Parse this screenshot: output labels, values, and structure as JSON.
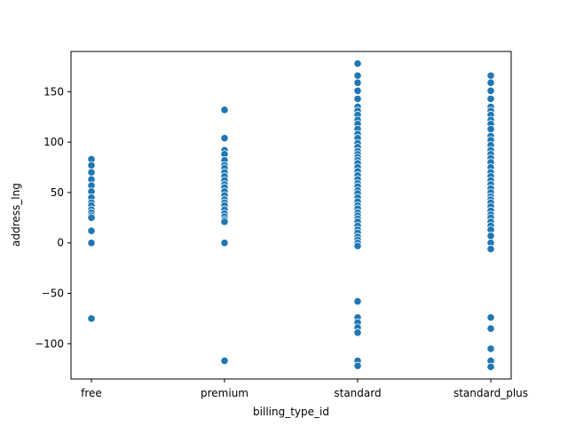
{
  "chart_data": {
    "type": "scatter",
    "xlabel": "billing_type_id",
    "ylabel": "address_lng",
    "categories": [
      "free",
      "premium",
      "standard",
      "standard_plus"
    ],
    "ylim": [
      -135,
      190
    ],
    "yticks": [
      -100,
      -50,
      0,
      50,
      100,
      150
    ],
    "grid": false,
    "point_color": "#1f77b4",
    "series": [
      {
        "category": "free",
        "y": [
          83,
          77,
          70,
          63,
          57,
          51,
          45,
          40,
          37,
          33,
          30,
          27,
          25,
          12,
          0,
          -75
        ]
      },
      {
        "category": "premium",
        "y": [
          132,
          104,
          92,
          88,
          82,
          77,
          74,
          70,
          66,
          62,
          58,
          55,
          51,
          47,
          43,
          40,
          37,
          33,
          29,
          26,
          23,
          21,
          0,
          -117
        ]
      },
      {
        "category": "standard",
        "y": [
          178,
          166,
          159,
          151,
          143,
          135,
          131,
          127,
          122,
          118,
          113,
          108,
          104,
          99,
          95,
          91,
          88,
          85,
          82,
          79,
          75,
          71,
          67,
          63,
          59,
          56,
          52,
          49,
          45,
          41,
          37,
          34,
          30,
          27,
          24,
          21,
          17,
          13,
          10,
          6,
          3,
          0,
          -3,
          -58,
          -74,
          -79,
          -84,
          -89,
          -117,
          -122
        ]
      },
      {
        "category": "standard_plus",
        "y": [
          166,
          159,
          151,
          143,
          135,
          131,
          127,
          122,
          118,
          113,
          106,
          102,
          97,
          92,
          88,
          84,
          80,
          75,
          70,
          66,
          62,
          58,
          54,
          50,
          46,
          43,
          40,
          36,
          32,
          28,
          25,
          21,
          17,
          13,
          7,
          0,
          -6,
          -74,
          -85,
          -105,
          -117,
          -123
        ]
      }
    ]
  }
}
